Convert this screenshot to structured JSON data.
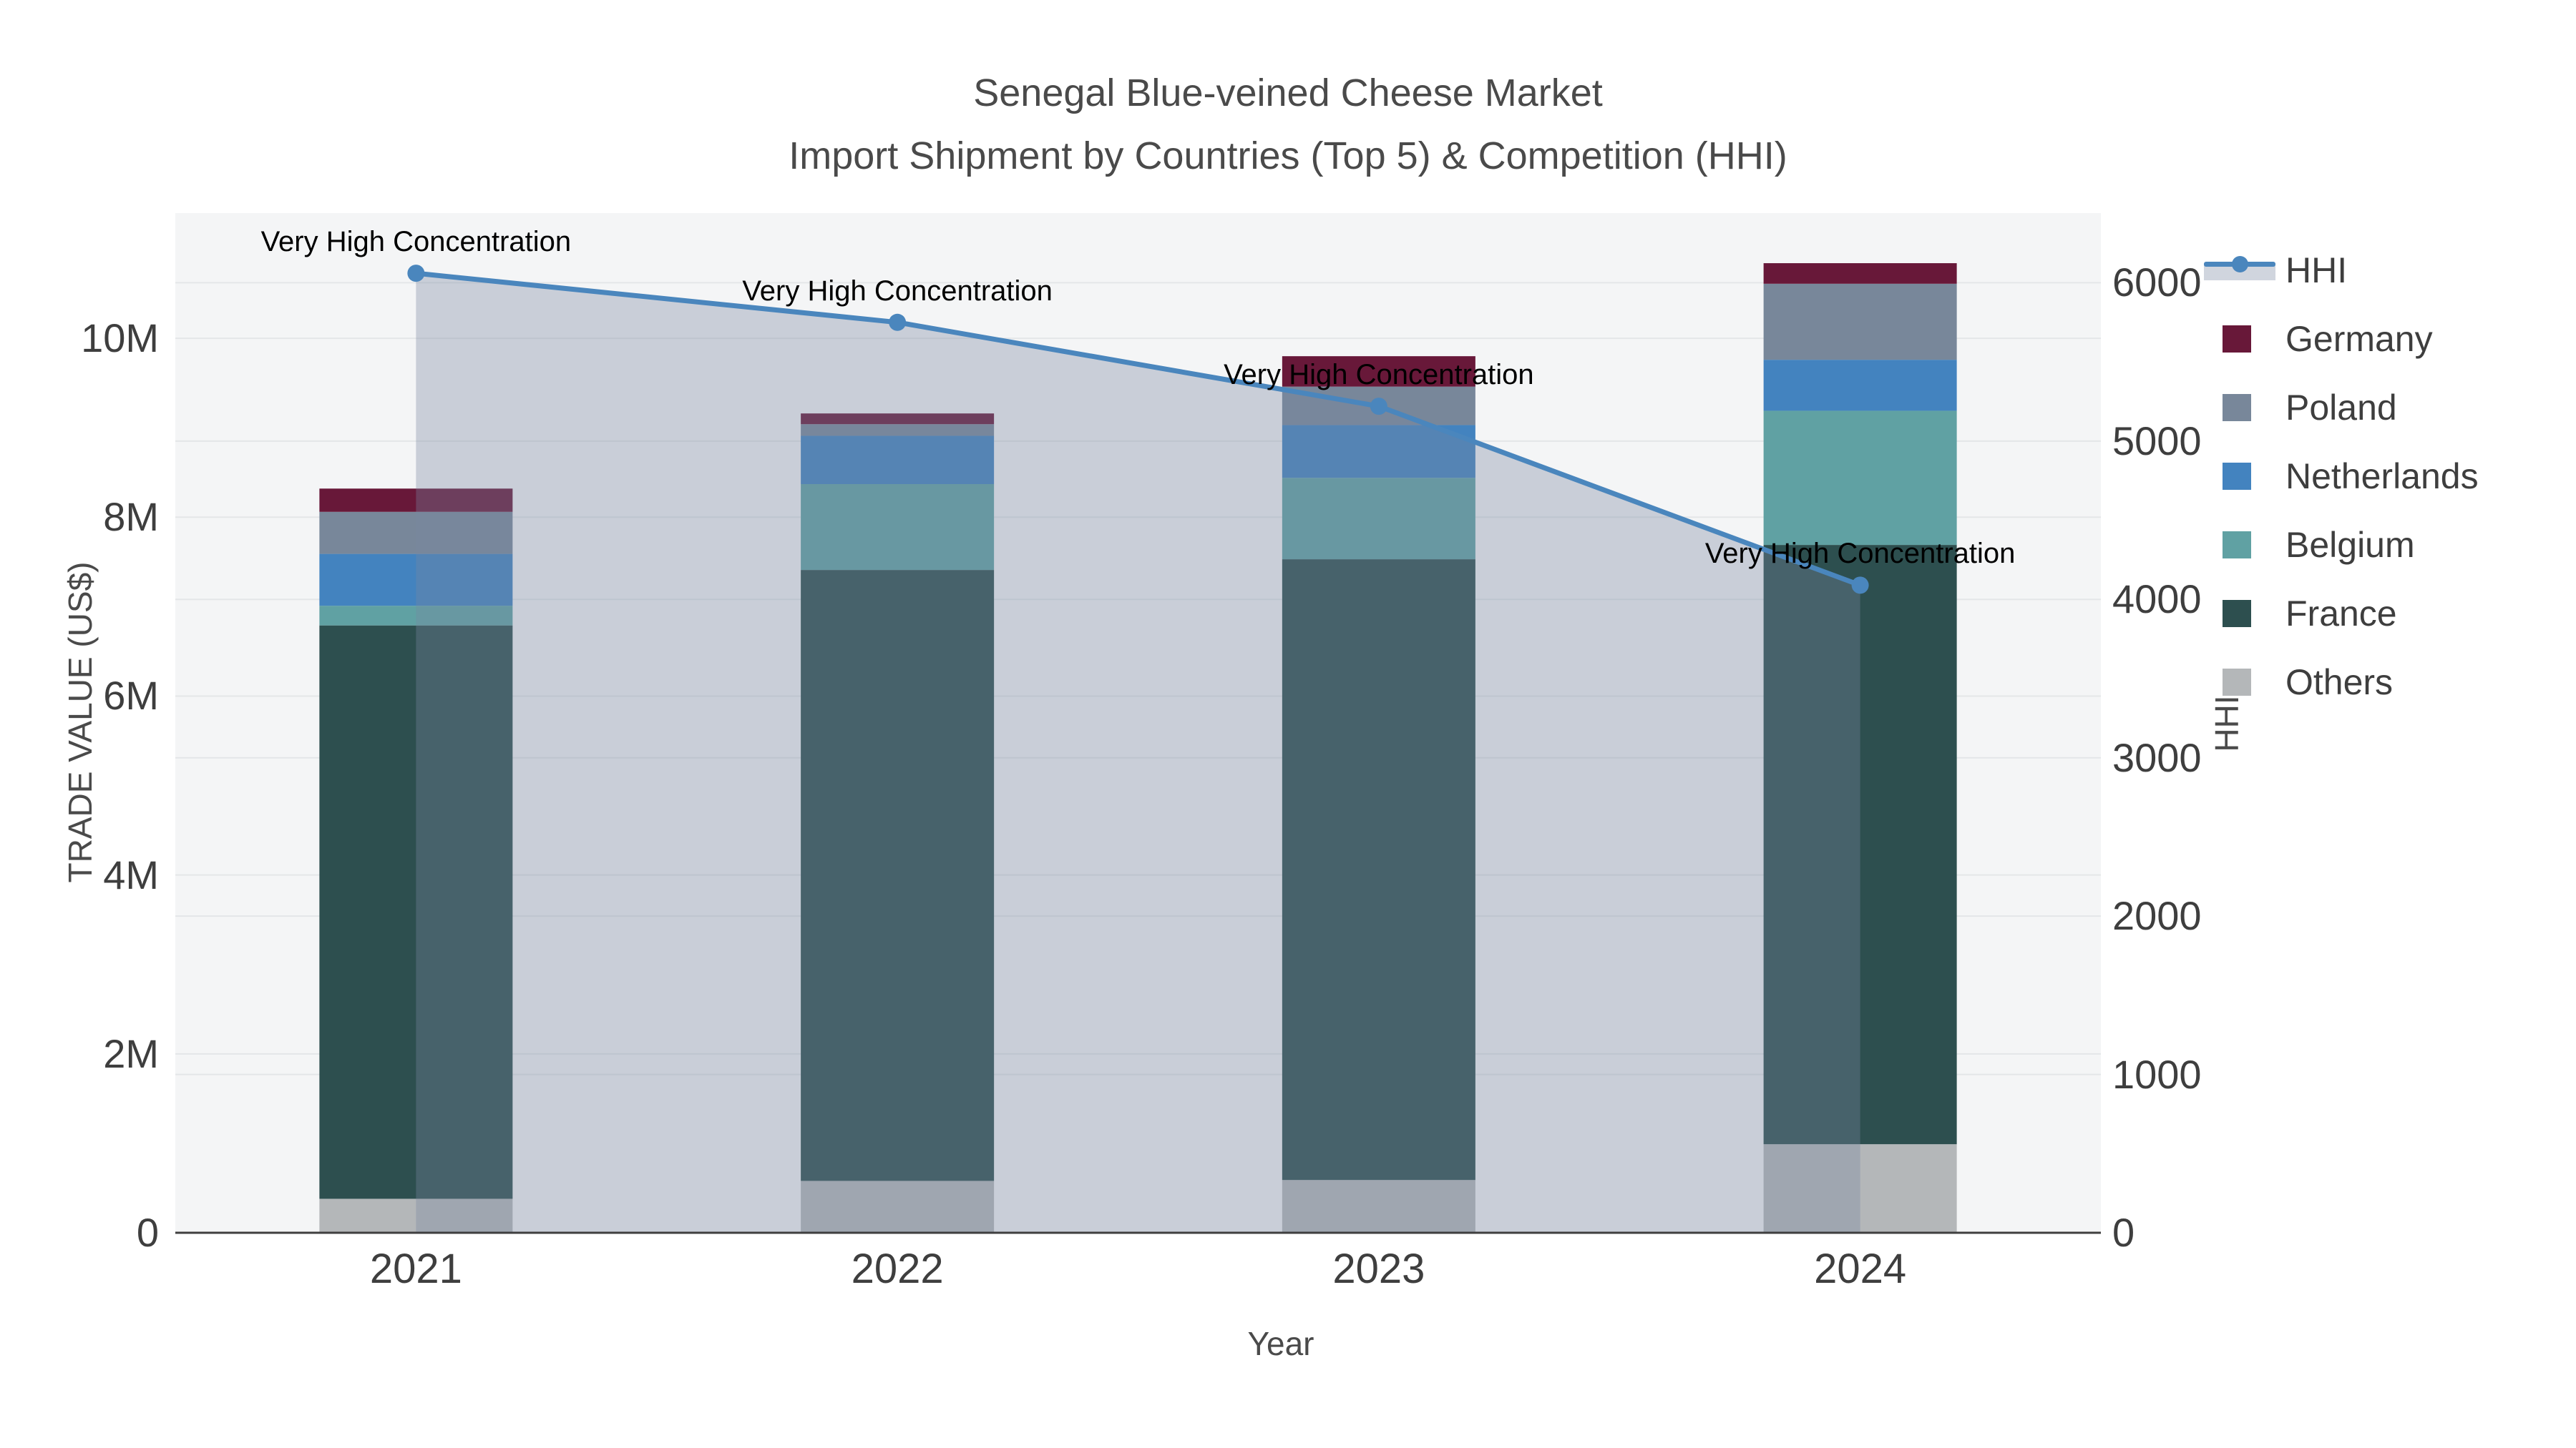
{
  "page": {
    "background": "#ffffff"
  },
  "chart_data": {
    "type": "bar",
    "subtype": "stacked-bars-with-line",
    "title": "Senegal Blue-veined Cheese Market",
    "subtitle": "Import Shipment by Countries (Top 5) & Competition (HHI)",
    "categories": [
      "2021",
      "2022",
      "2023",
      "2024"
    ],
    "xlabel": "Year",
    "series": [
      {
        "name": "Others",
        "type": "bar",
        "color": "#b4b7b9",
        "values": [
          380000,
          580000,
          590000,
          990000
        ]
      },
      {
        "name": "France",
        "type": "bar",
        "color": "#2d4f4f",
        "values": [
          6410000,
          6830000,
          6940000,
          6700000
        ]
      },
      {
        "name": "Belgium",
        "type": "bar",
        "color": "#60a1a3",
        "values": [
          220000,
          960000,
          910000,
          1500000
        ]
      },
      {
        "name": "Netherlands",
        "type": "bar",
        "color": "#4383bf",
        "values": [
          580000,
          540000,
          590000,
          570000
        ]
      },
      {
        "name": "Poland",
        "type": "bar",
        "color": "#78879a",
        "values": [
          470000,
          130000,
          430000,
          850000
        ]
      },
      {
        "name": "Germany",
        "type": "bar",
        "color": "#681839",
        "values": [
          260000,
          120000,
          340000,
          230000
        ]
      }
    ],
    "line_series": {
      "name": "HHI",
      "color": "#4a86bd",
      "area_fill_color": "rgba(121,134,160,0.35)",
      "values": [
        6060,
        5750,
        5220,
        4090
      ]
    },
    "annotations": {
      "text": "Very High Concentration",
      "items": [
        "Very High Concentration",
        "Very High Concentration",
        "Very High Concentration",
        "Very High Concentration"
      ]
    },
    "axes": {
      "left": {
        "label": "TRADE VALUE (US$)",
        "max": 11400000,
        "ticks": [
          {
            "v": 0,
            "t": "0"
          },
          {
            "v": 2000000,
            "t": "2M"
          },
          {
            "v": 4000000,
            "t": "4M"
          },
          {
            "v": 6000000,
            "t": "6M"
          },
          {
            "v": 8000000,
            "t": "8M"
          },
          {
            "v": 10000000,
            "t": "10M"
          }
        ]
      },
      "right": {
        "label": "HHI",
        "max": 6440,
        "ticks": [
          {
            "v": 0,
            "t": "0"
          },
          {
            "v": 1000,
            "t": "1000"
          },
          {
            "v": 2000,
            "t": "2000"
          },
          {
            "v": 3000,
            "t": "3000"
          },
          {
            "v": 4000,
            "t": "4000"
          },
          {
            "v": 5000,
            "t": "5000"
          },
          {
            "v": 6000,
            "t": "6000"
          }
        ]
      },
      "x": {
        "label": "Year"
      }
    },
    "legend": [
      {
        "name": "HHI",
        "kind": "line",
        "color": "#4a86bd"
      },
      {
        "name": "Germany",
        "kind": "bar",
        "color": "#681839"
      },
      {
        "name": "Poland",
        "kind": "bar",
        "color": "#78879a"
      },
      {
        "name": "Netherlands",
        "kind": "bar",
        "color": "#4383bf"
      },
      {
        "name": "Belgium",
        "kind": "bar",
        "color": "#60a1a3"
      },
      {
        "name": "France",
        "kind": "bar",
        "color": "#2d4f4f"
      },
      {
        "name": "Others",
        "kind": "bar",
        "color": "#b4b7b9"
      }
    ],
    "style": {
      "plot_bg": "#f4f5f6",
      "grid_color": "#e4e6e8",
      "axis_line_color": "#3f3f3f"
    },
    "layout_hints": {
      "legend_position": "right",
      "grid": true,
      "bar_fraction_of_band": 0.4
    }
  }
}
